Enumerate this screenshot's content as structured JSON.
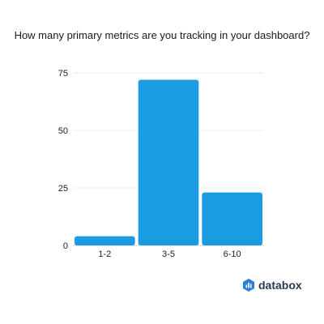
{
  "chart_data": {
    "type": "bar",
    "title": "How many primary metrics are you tracking in your dashboard?",
    "categories": [
      "1-2",
      "3-5",
      "6-10"
    ],
    "values": [
      4,
      72,
      23
    ],
    "xlabel": "",
    "ylabel": "",
    "ylim": [
      0,
      75
    ],
    "yticks": [
      0,
      25,
      50,
      75
    ],
    "grid": true,
    "bar_color": "#1b9ce2"
  },
  "brand": {
    "name": "databox",
    "color": "#2b3954",
    "icon": "databox-logo-icon"
  }
}
